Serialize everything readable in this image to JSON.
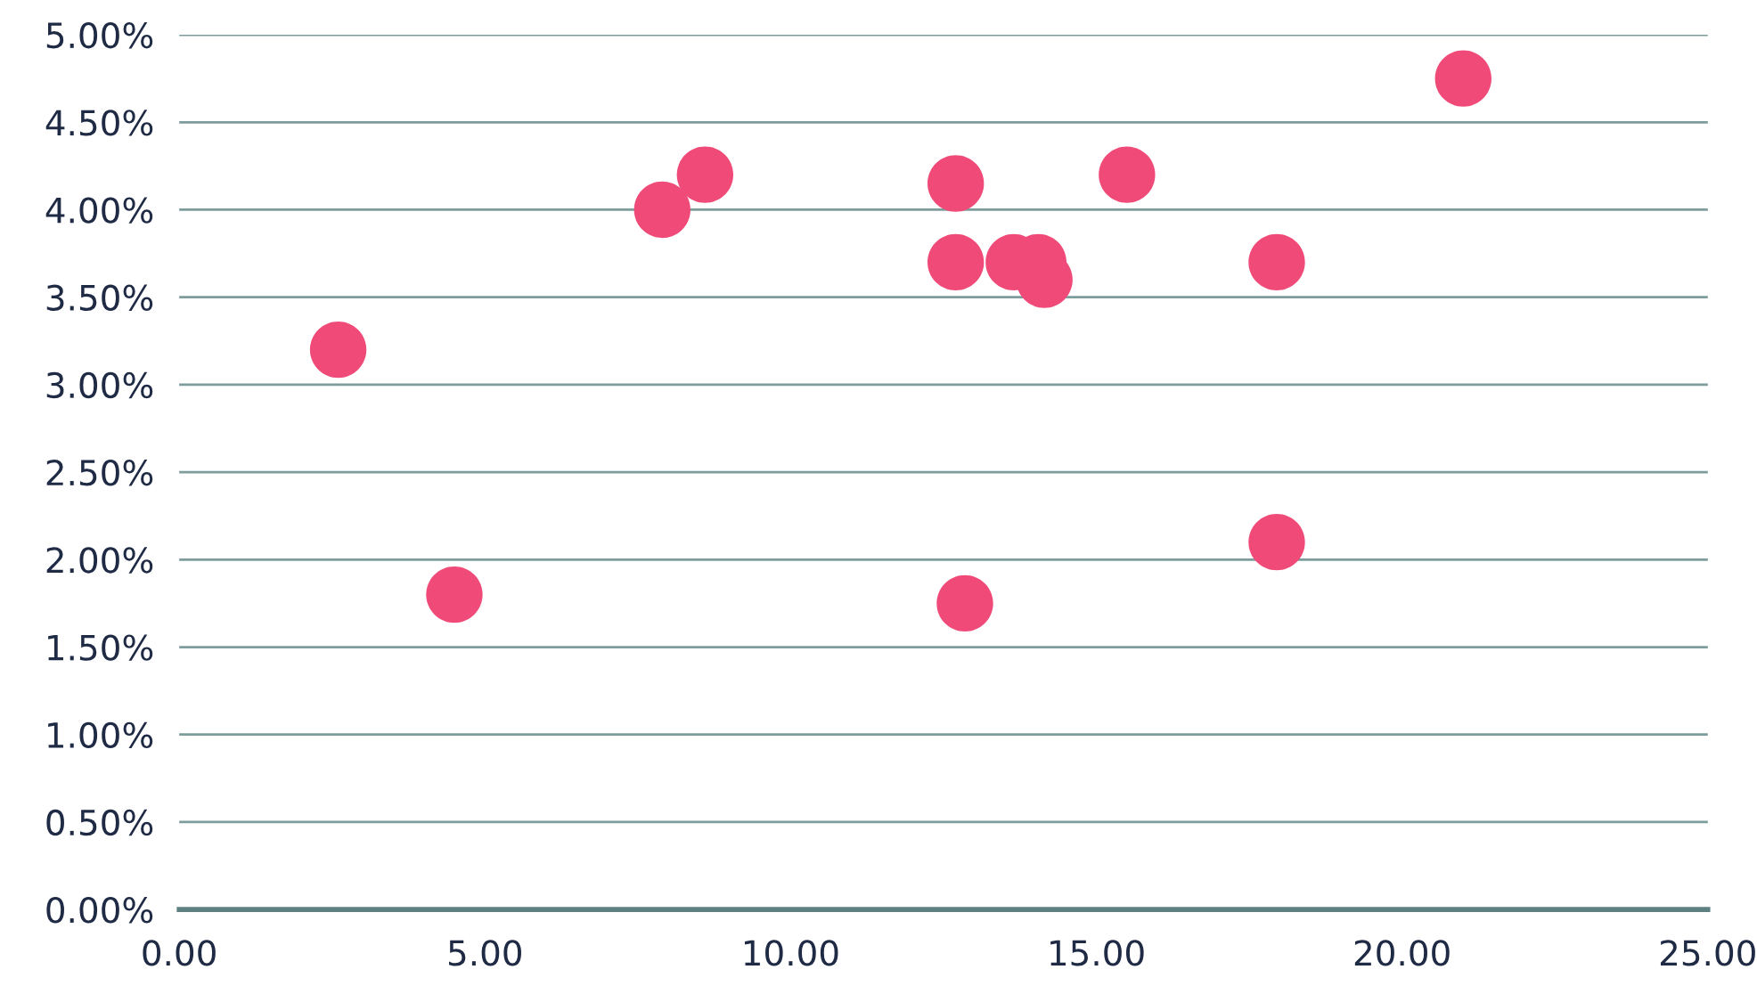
{
  "chart_data": {
    "type": "scatter",
    "x": [
      2.6,
      4.5,
      7.9,
      8.6,
      12.7,
      12.7,
      12.85,
      13.65,
      14.15,
      15.5,
      17.95,
      17.95,
      21.0,
      14.05
    ],
    "series": [
      {
        "color": "#ef4a78",
        "values": [
          3.2,
          1.8,
          4.0,
          4.2,
          4.15,
          3.7,
          1.75,
          3.7,
          3.6,
          4.2,
          3.7,
          2.1,
          4.75,
          3.7
        ]
      }
    ],
    "xlim": [
      0,
      25
    ],
    "xticks": [
      {
        "value": 0,
        "label": "0.00"
      },
      {
        "value": 5,
        "label": "5.00"
      },
      {
        "value": 10,
        "label": "10.00"
      },
      {
        "value": 15,
        "label": "15.00"
      },
      {
        "value": 20,
        "label": "20.00"
      },
      {
        "value": 25,
        "label": "25.00"
      }
    ],
    "ylim": [
      0,
      5
    ],
    "yticks": [
      {
        "value": 0,
        "label": "0.00%"
      },
      {
        "value": 0.5,
        "label": "0.50%"
      },
      {
        "value": 1,
        "label": "1.00%"
      },
      {
        "value": 1.5,
        "label": "1.50%"
      },
      {
        "value": 2,
        "label": "2.00%"
      },
      {
        "value": 2.5,
        "label": "2.50%"
      },
      {
        "value": 3,
        "label": "3.00%"
      },
      {
        "value": 3.5,
        "label": "3.50%"
      },
      {
        "value": 4,
        "label": "4.00%"
      },
      {
        "value": 4.5,
        "label": "4.50%"
      },
      {
        "value": 5,
        "label": "5.00%"
      }
    ],
    "grid": "y",
    "marker": "circle",
    "legend": false
  }
}
